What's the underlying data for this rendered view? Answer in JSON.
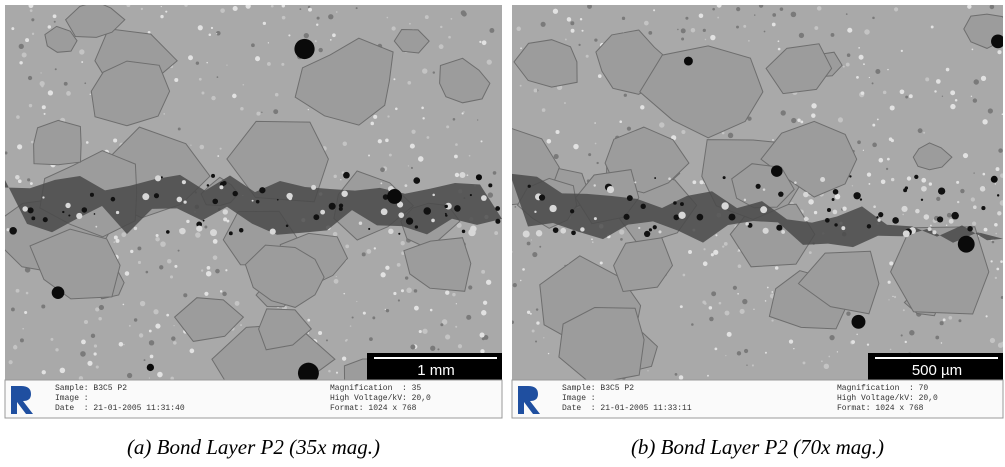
{
  "panels": [
    {
      "scale_bar": "1 mm",
      "info": {
        "sample": "Sample: B3C5 P2",
        "image": "Image :",
        "date": "Date  : 21-01-2005 11:31:40",
        "magnification": "Magnification  : 35",
        "high_voltage": "High Voltage/kV: 20,0",
        "format": "Format: 1024 x 768"
      },
      "caption": "(a) Bond Layer P2 (35x mag.)"
    },
    {
      "scale_bar": "500 µm",
      "info": {
        "sample": "Sample: B3C5 P2",
        "image": "Image :",
        "date": "Date  : 21-01-2005 11:33:11",
        "magnification": "Magnification  : 70",
        "high_voltage": "High Voltage/kV: 20,0",
        "format": "Format: 1024 x 768"
      },
      "caption": "(b) Bond Layer P2 (70x mag.)"
    }
  ]
}
